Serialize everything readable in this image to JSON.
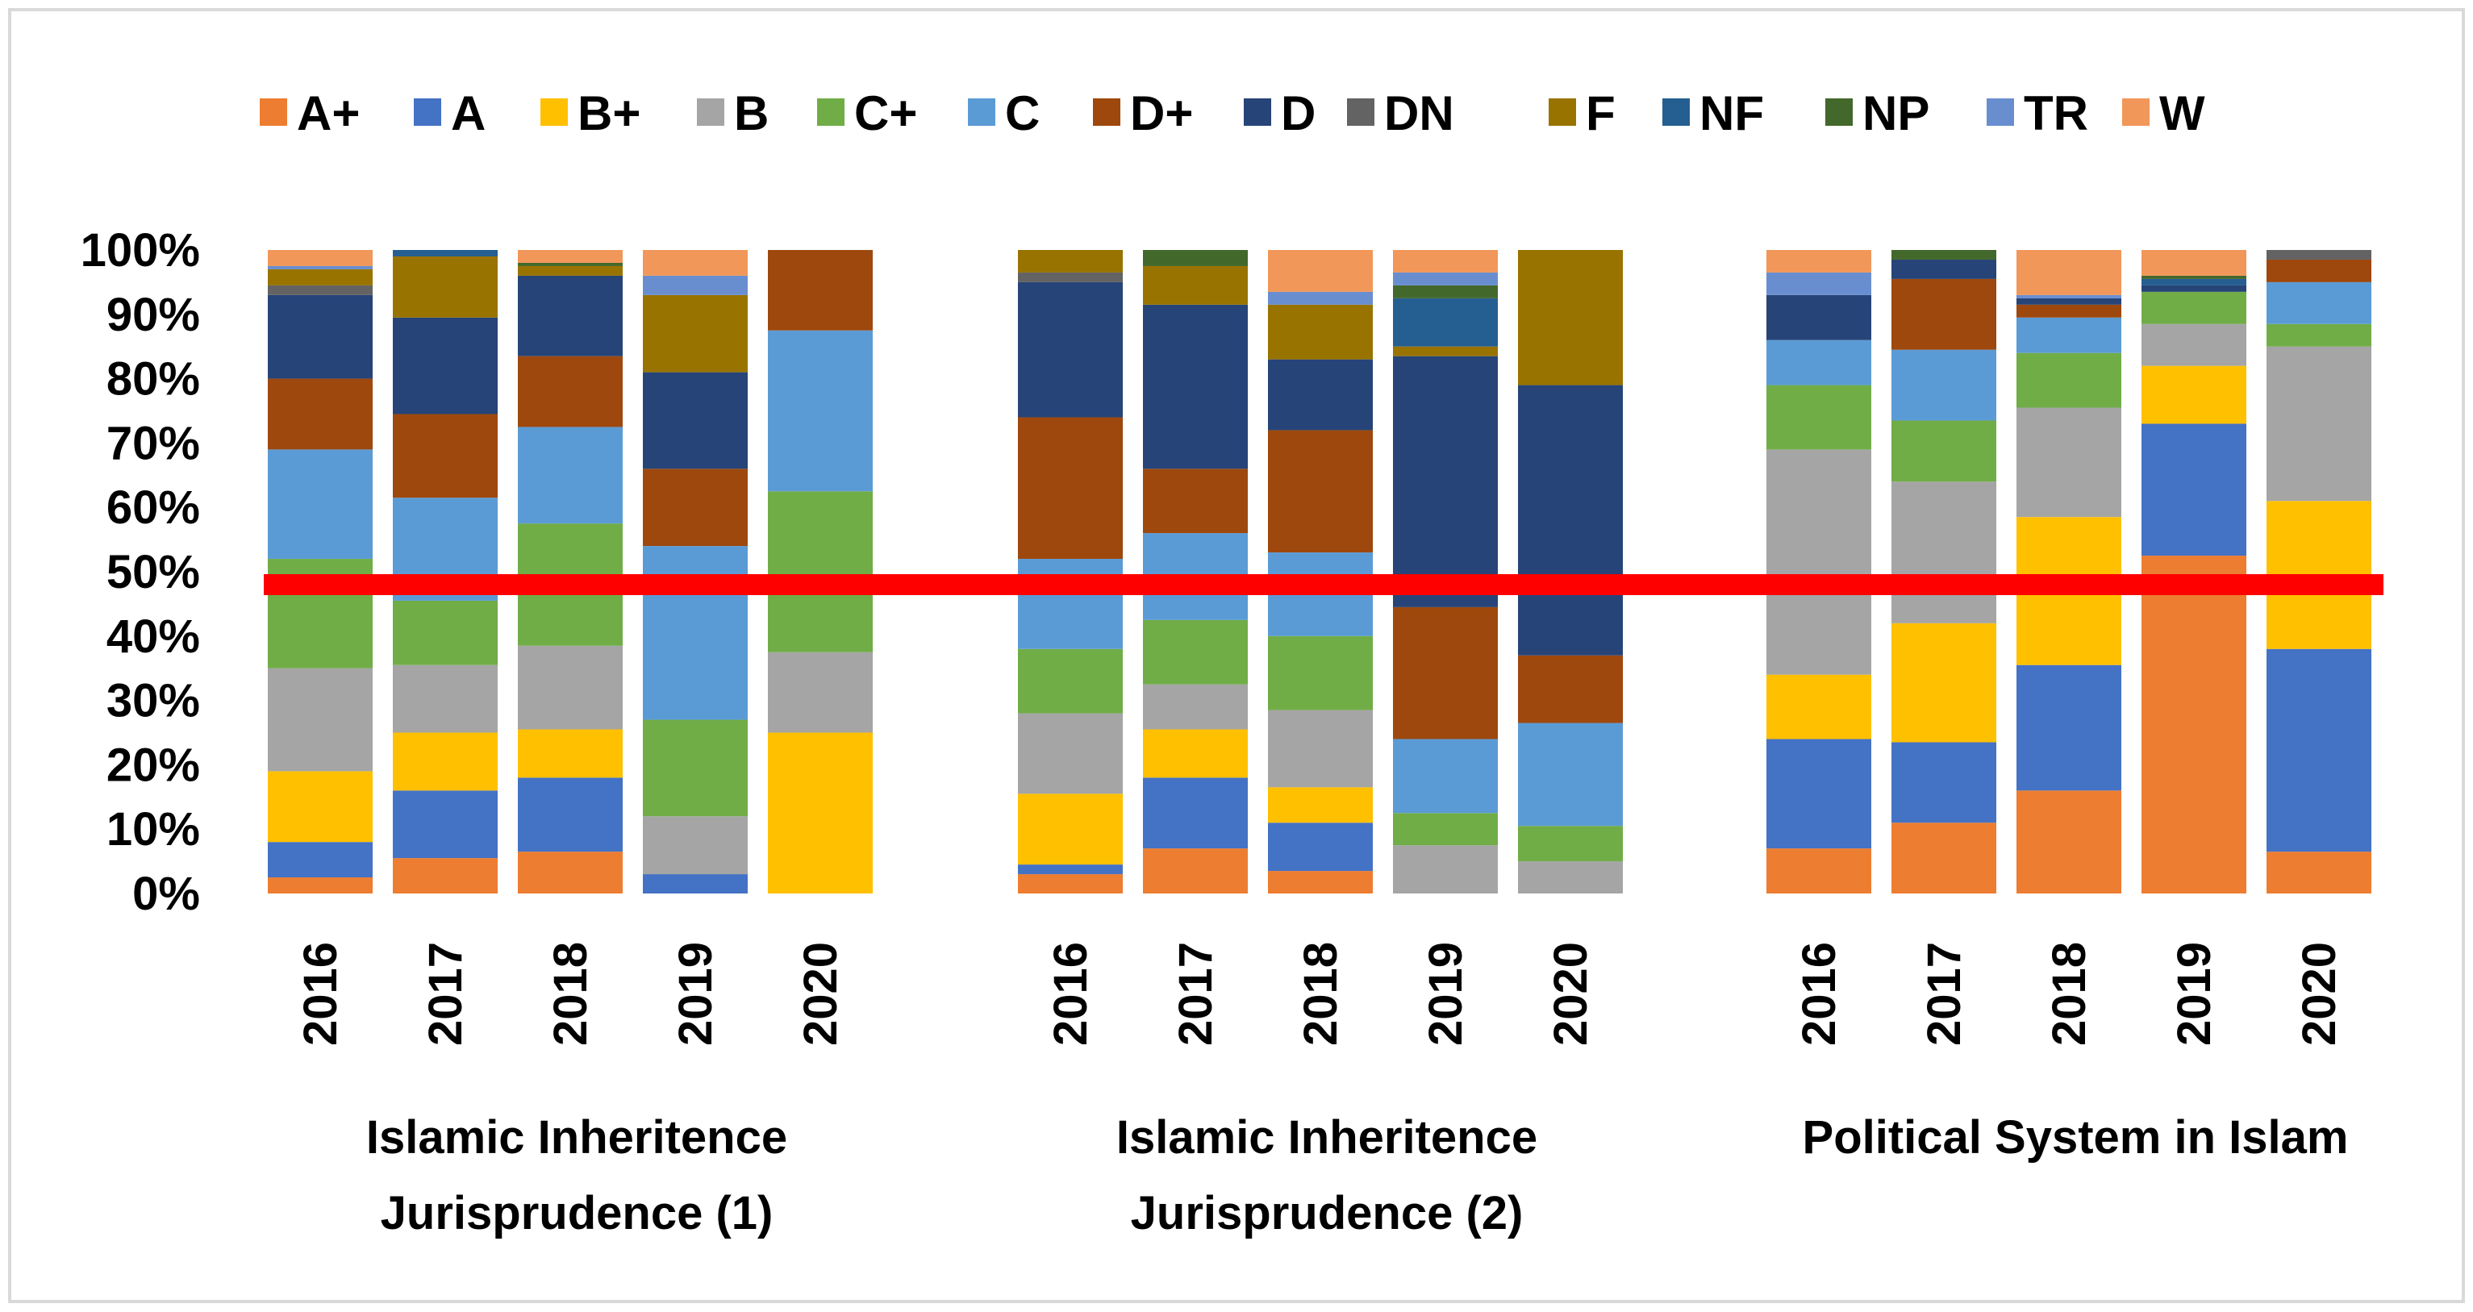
{
  "chart_data": {
    "type": "bar",
    "stacked": "percent",
    "title": "",
    "xlabel": "",
    "ylabel": "",
    "ylim": [
      0,
      100
    ],
    "y_ticks": [
      "0%",
      "10%",
      "20%",
      "30%",
      "40%",
      "50%",
      "60%",
      "70%",
      "80%",
      "90%",
      "100%"
    ],
    "legend_position": "top",
    "grades": [
      "A+",
      "A",
      "B+",
      "B",
      "C+",
      "C",
      "D+",
      "D",
      "DN",
      "F",
      "NF",
      "NP",
      "TR",
      "W"
    ],
    "colors": {
      "A+": "#ED7D31",
      "A": "#4472C4",
      "B+": "#FFC000",
      "B": "#A5A5A5",
      "C+": "#70AD47",
      "C": "#5B9BD5",
      "D+": "#9E480E",
      "D": "#264478",
      "DN": "#636363",
      "F": "#997300",
      "NF": "#255E91",
      "NP": "#43682B",
      "TR": "#698ED0",
      "W": "#F1975A"
    },
    "reference_line": {
      "value": 48,
      "color": "#FF0000"
    },
    "groups": [
      {
        "label_lines": [
          "Islamic Inheritence",
          "Jurisprudence (1)"
        ],
        "bars": [
          {
            "year": "2016",
            "values": {
              "A+": 2.5,
              "A": 5.5,
              "B+": 11,
              "B": 16,
              "C+": 17,
              "C": 17,
              "D+": 11,
              "D": 13,
              "DN": 1.5,
              "F": 2.5,
              "TR": 0.5,
              "W": 2.5
            }
          },
          {
            "year": "2017",
            "values": {
              "A+": 5.5,
              "A": 10.5,
              "B+": 9,
              "B": 10.5,
              "C+": 10,
              "C": 16,
              "D+": 13,
              "D": 15,
              "F": 9.5,
              "NF": 1
            }
          },
          {
            "year": "2018",
            "values": {
              "A+": 6.5,
              "A": 11.5,
              "B+": 7.5,
              "B": 13,
              "C+": 19,
              "C": 15,
              "D+": 11,
              "D": 12.5,
              "F": 1.5,
              "NP": 0.5,
              "W": 2
            }
          },
          {
            "year": "2019",
            "values": {
              "A+": 0,
              "A": 3,
              "B+": 0,
              "B": 9,
              "C+": 15,
              "C": 27,
              "D+": 12,
              "D": 15,
              "F": 12,
              "TR": 3,
              "W": 4
            }
          },
          {
            "year": "2020",
            "values": {
              "B+": 25,
              "B": 12.5,
              "C+": 25,
              "C": 25,
              "D+": 12.5
            }
          }
        ]
      },
      {
        "label_lines": [
          "Islamic Inheritence",
          "Jurisprudence (2)"
        ],
        "bars": [
          {
            "year": "2016",
            "values": {
              "A+": 3,
              "A": 1.5,
              "B+": 11,
              "B": 12.5,
              "C+": 10,
              "C": 14,
              "D+": 22,
              "D": 21,
              "DN": 1.5,
              "F": 3.5
            }
          },
          {
            "year": "2017",
            "values": {
              "A+": 7,
              "A": 11,
              "B+": 7.5,
              "B": 7,
              "C+": 10,
              "C": 13.5,
              "D+": 10,
              "D": 25.5,
              "F": 6,
              "NP": 2.5
            }
          },
          {
            "year": "2018",
            "values": {
              "A+": 3.5,
              "A": 7.5,
              "B+": 5.5,
              "B": 12,
              "C+": 11.5,
              "C": 13,
              "D+": 19,
              "D": 11,
              "F": 8.5,
              "TR": 2,
              "W": 6.5
            }
          },
          {
            "year": "2019",
            "values": {
              "B": 7.5,
              "C+": 5,
              "C": 11.5,
              "D+": 20.5,
              "D": 39,
              "F": 1.5,
              "NF": 7.5,
              "NP": 2,
              "TR": 2,
              "W": 3.5
            }
          },
          {
            "year": "2020",
            "values": {
              "B": 5,
              "C+": 5.5,
              "C": 16,
              "D+": 10.5,
              "D": 42,
              "F": 21
            }
          }
        ]
      },
      {
        "label_lines": [
          "Political System in Islam"
        ],
        "bars": [
          {
            "year": "2016",
            "values": {
              "A+": 7,
              "A": 17,
              "B+": 10,
              "B": 35,
              "C+": 10,
              "C": 7,
              "D": 7,
              "TR": 3.5,
              "W": 3.5
            }
          },
          {
            "year": "2017",
            "values": {
              "A+": 11,
              "A": 12.5,
              "B+": 18.5,
              "B": 22,
              "C+": 9.5,
              "C": 11,
              "D+": 11,
              "D": 3,
              "NP": 1.5
            }
          },
          {
            "year": "2018",
            "values": {
              "A+": 16,
              "A": 19.5,
              "B+": 23,
              "B": 17,
              "C+": 8.5,
              "C": 5.5,
              "D+": 2,
              "D": 1,
              "TR": 0.5,
              "W": 7
            }
          },
          {
            "year": "2019",
            "values": {
              "A+": 52.5,
              "A": 20.5,
              "B+": 9,
              "B": 6.5,
              "C+": 5,
              "D": 1,
              "NF": 1,
              "NP": 0.5,
              "W": 4
            }
          },
          {
            "year": "2020",
            "values": {
              "A+": 6.5,
              "A": 31.5,
              "B+": 23,
              "B": 24,
              "C+": 3.5,
              "C": 6.5,
              "D+": 3.5,
              "DN": 1.5
            }
          }
        ]
      }
    ]
  }
}
